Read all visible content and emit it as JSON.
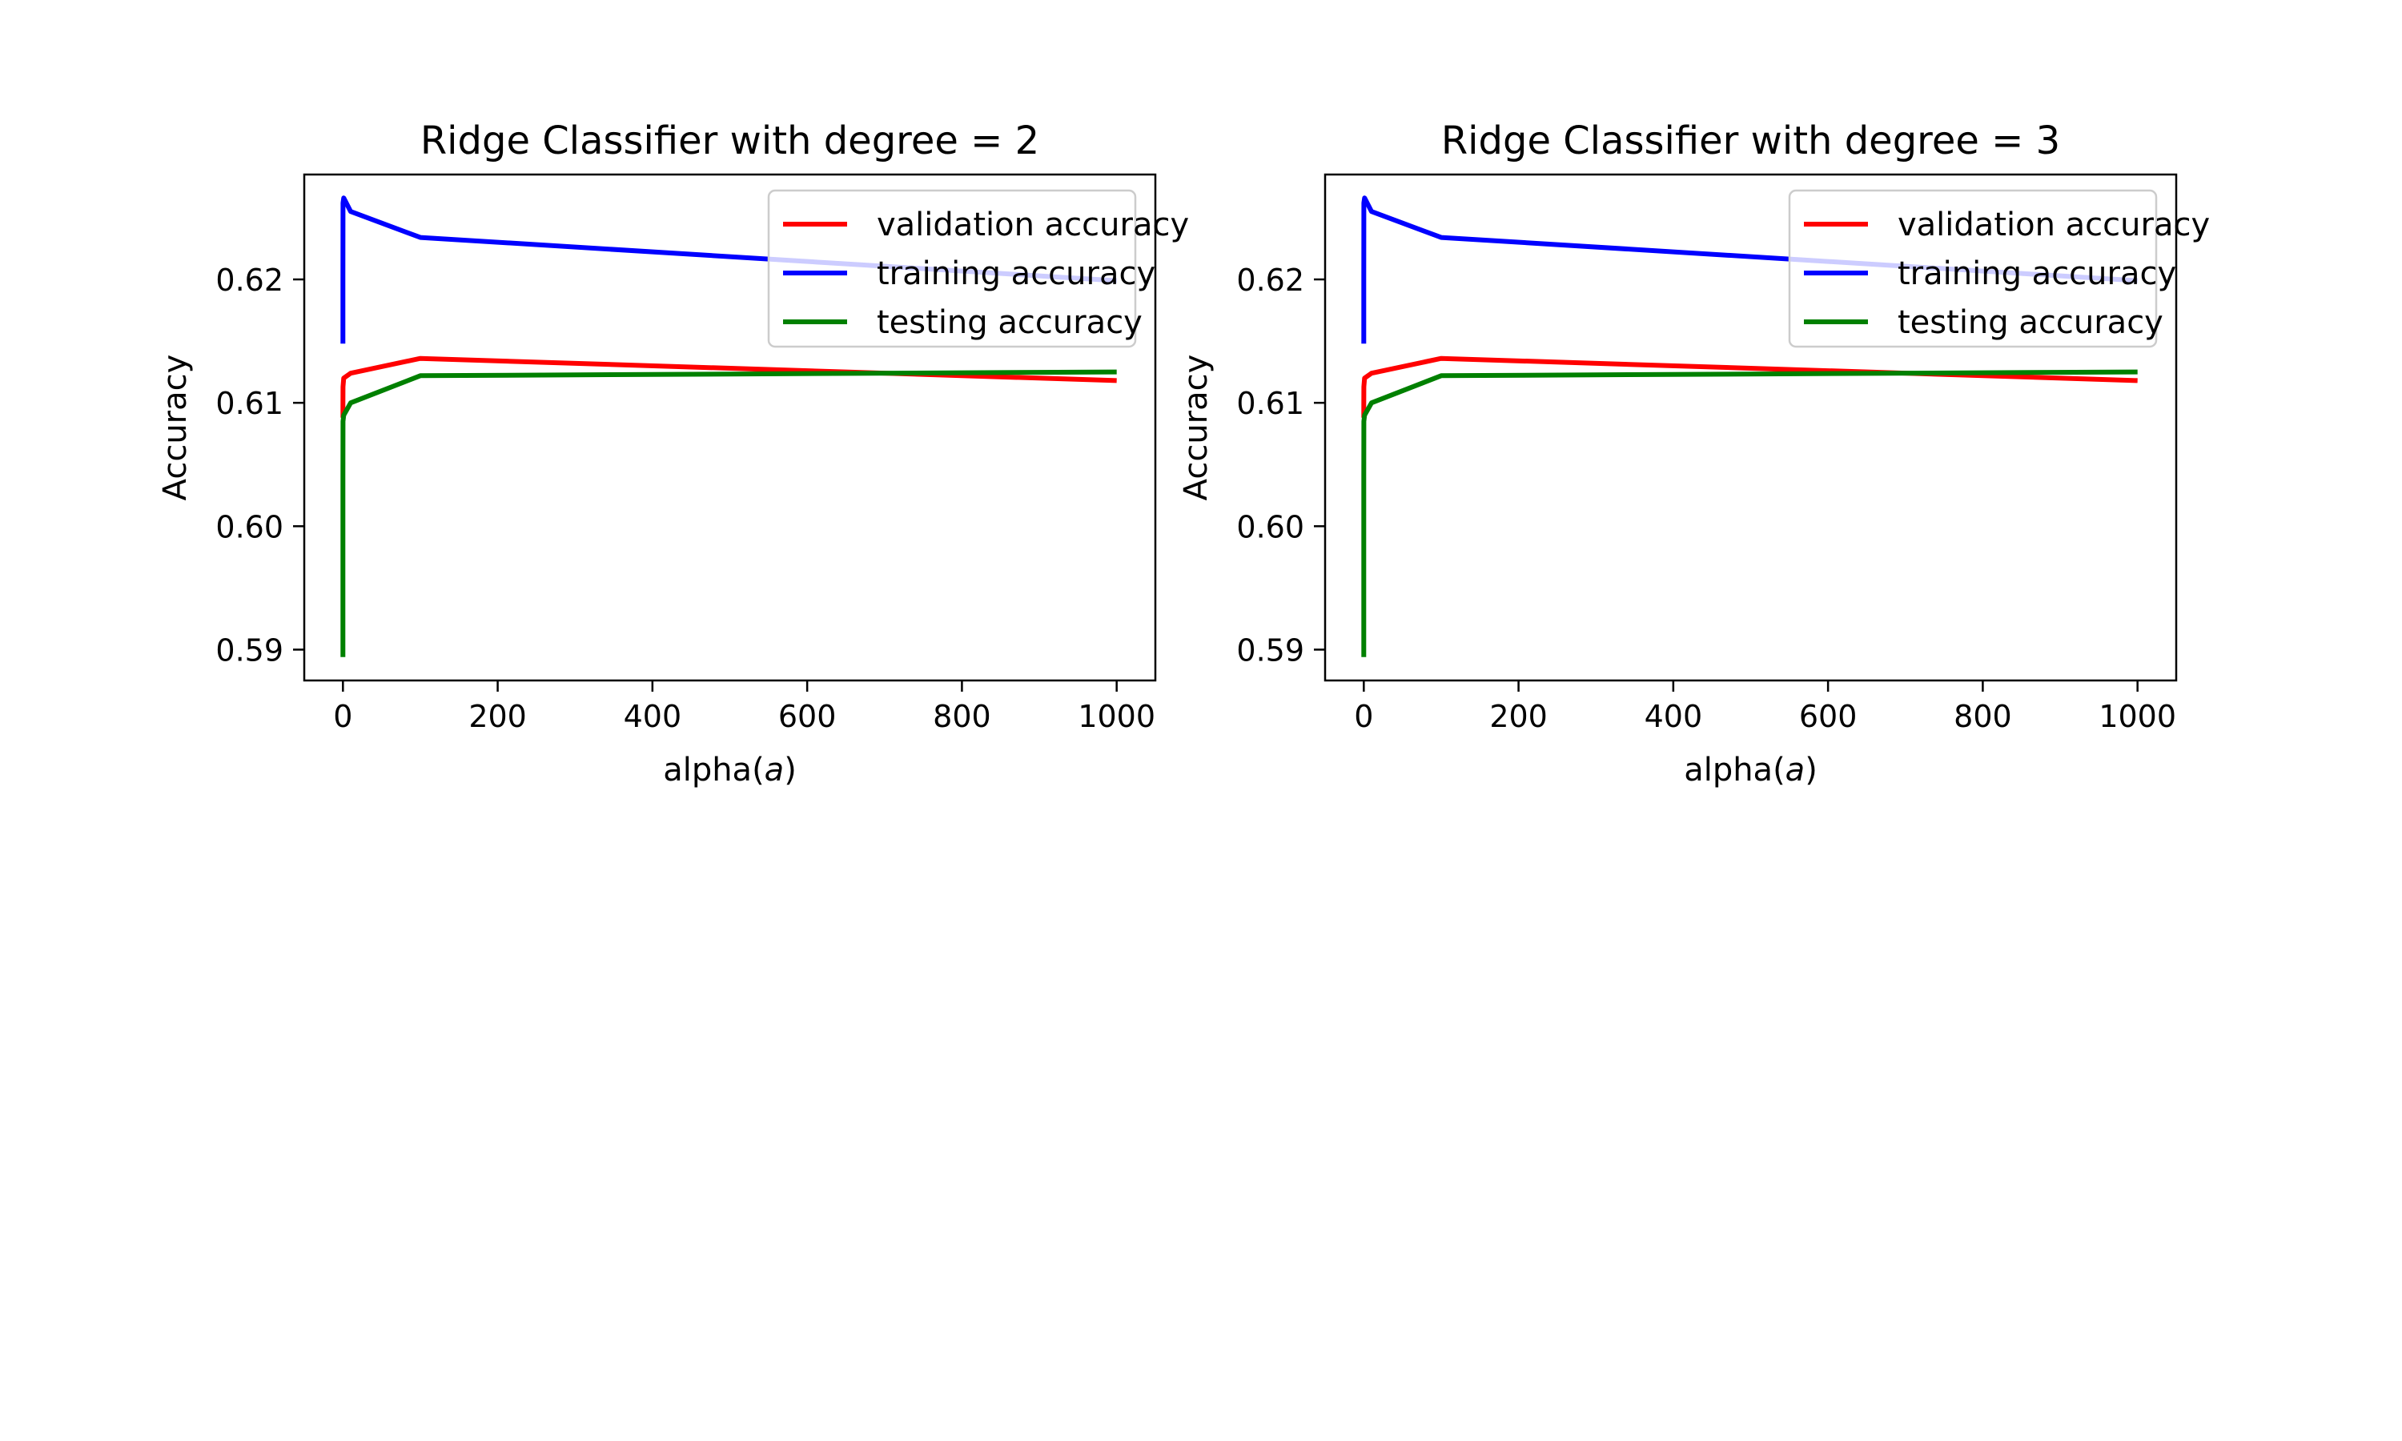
{
  "colors": {
    "background": "#ffffff",
    "axes": "#000000",
    "legend_border": "#cccccc"
  },
  "chart_data": [
    {
      "type": "line",
      "title": "Ridge Classifier with degree = 2",
      "xlabel": "alpha(",
      "xlabel_math": "a",
      "xlabel_close": ")",
      "ylabel": "Accuracy",
      "xlim": [
        -50,
        1050
      ],
      "ylim": [
        0.5875,
        0.6285
      ],
      "xticks": [
        0,
        200,
        400,
        600,
        800,
        1000
      ],
      "xtick_labels": [
        "0",
        "200",
        "400",
        "600",
        "800",
        "1000"
      ],
      "yticks": [
        0.59,
        0.6,
        0.61,
        0.62
      ],
      "ytick_labels": [
        "0.59",
        "0.60",
        "0.61",
        "0.62"
      ],
      "grid": false,
      "legend_position": "upper-right",
      "series": [
        {
          "name": "validation accuracy",
          "color": "#ff0000",
          "x": [
            0.001,
            0.01,
            0.1,
            1,
            10,
            100,
            1000
          ],
          "y": [
            0.6088,
            0.6097,
            0.6113,
            0.612,
            0.6124,
            0.6136,
            0.6118
          ]
        },
        {
          "name": "training accuracy",
          "color": "#0000ff",
          "x": [
            0.001,
            0.01,
            0.1,
            1,
            10,
            100,
            1000
          ],
          "y": [
            0.6148,
            0.62,
            0.6262,
            0.6266,
            0.6255,
            0.6234,
            0.6199
          ]
        },
        {
          "name": "testing accuracy",
          "color": "#008000",
          "x": [
            0.001,
            0.01,
            0.1,
            1,
            10,
            100,
            1000
          ],
          "y": [
            0.5894,
            0.604,
            0.6085,
            0.609,
            0.61,
            0.6122,
            0.6125
          ]
        }
      ]
    },
    {
      "type": "line",
      "title": "Ridge Classifier with degree = 3",
      "xlabel": "alpha(",
      "xlabel_math": "a",
      "xlabel_close": ")",
      "ylabel": "Accuracy",
      "xlim": [
        -50,
        1050
      ],
      "ylim": [
        0.5875,
        0.6285
      ],
      "xticks": [
        0,
        200,
        400,
        600,
        800,
        1000
      ],
      "xtick_labels": [
        "0",
        "200",
        "400",
        "600",
        "800",
        "1000"
      ],
      "yticks": [
        0.59,
        0.6,
        0.61,
        0.62
      ],
      "ytick_labels": [
        "0.59",
        "0.60",
        "0.61",
        "0.62"
      ],
      "grid": false,
      "legend_position": "upper-right",
      "series": [
        {
          "name": "validation accuracy",
          "color": "#ff0000",
          "x": [
            0.001,
            0.01,
            0.1,
            1,
            10,
            100,
            1000
          ],
          "y": [
            0.6088,
            0.6097,
            0.6113,
            0.612,
            0.6124,
            0.6136,
            0.6118
          ]
        },
        {
          "name": "training accuracy",
          "color": "#0000ff",
          "x": [
            0.001,
            0.01,
            0.1,
            1,
            10,
            100,
            1000
          ],
          "y": [
            0.6148,
            0.62,
            0.6262,
            0.6266,
            0.6255,
            0.6234,
            0.6199
          ]
        },
        {
          "name": "testing accuracy",
          "color": "#008000",
          "x": [
            0.001,
            0.01,
            0.1,
            1,
            10,
            100,
            1000
          ],
          "y": [
            0.5894,
            0.604,
            0.6085,
            0.609,
            0.61,
            0.6122,
            0.6125
          ]
        }
      ]
    }
  ]
}
